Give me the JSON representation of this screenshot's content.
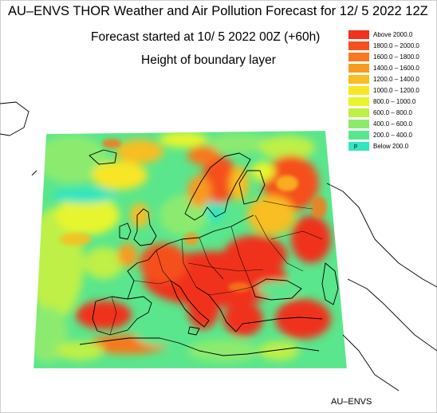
{
  "title": "AU–ENVS THOR Weather and Air Pollution Forecast for 12/ 5 2022  12Z",
  "subtitle": "Forecast started at 10/ 5 2022  00Z (+60h)",
  "field": "Height of boundary layer",
  "credit": "AU–ENVS",
  "legend": [
    {
      "label": "Above    2000.0",
      "color": "#f0321e"
    },
    {
      "label": "1800.0 – 2000.0",
      "color": "#f5501e"
    },
    {
      "label": "1600.0 – 1800.0",
      "color": "#f7781e"
    },
    {
      "label": "1400.0 – 1600.0",
      "color": "#f79a20"
    },
    {
      "label": "1200.0 – 1400.0",
      "color": "#f8be22"
    },
    {
      "label": "1000.0 – 1200.0",
      "color": "#f8e626"
    },
    {
      "label": "800.0 – 1000.0",
      "color": "#e6f52e"
    },
    {
      "label": "600.0 –   800.0",
      "color": "#bef046"
    },
    {
      "label": "400.0 –   600.0",
      "color": "#8ceb6e"
    },
    {
      "label": "200.0 –   400.0",
      "color": "#5ae68c"
    },
    {
      "label": "Below     200.0",
      "color": "#32e6be",
      "swatch_text": "p"
    }
  ]
}
